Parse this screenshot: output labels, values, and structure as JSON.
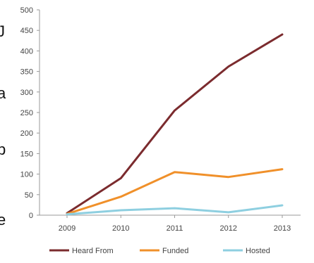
{
  "chart_data": {
    "type": "line",
    "title": "",
    "xlabel": "",
    "ylabel": "",
    "categories": [
      "2009",
      "2010",
      "2011",
      "2012",
      "2013"
    ],
    "ylim": [
      0,
      500
    ],
    "yticks": [
      0,
      50,
      100,
      150,
      200,
      250,
      300,
      350,
      400,
      450,
      500
    ],
    "grid": false,
    "legend_position": "bottom",
    "series": [
      {
        "name": "Heard From",
        "color": "#7b2b2e",
        "values": [
          5,
          90,
          255,
          362,
          440
        ]
      },
      {
        "name": "Funded",
        "color": "#f0902a",
        "values": [
          3,
          45,
          105,
          93,
          112
        ]
      },
      {
        "name": "Hosted",
        "color": "#8ecfe0",
        "values": [
          2,
          12,
          17,
          7,
          24
        ]
      }
    ]
  }
}
